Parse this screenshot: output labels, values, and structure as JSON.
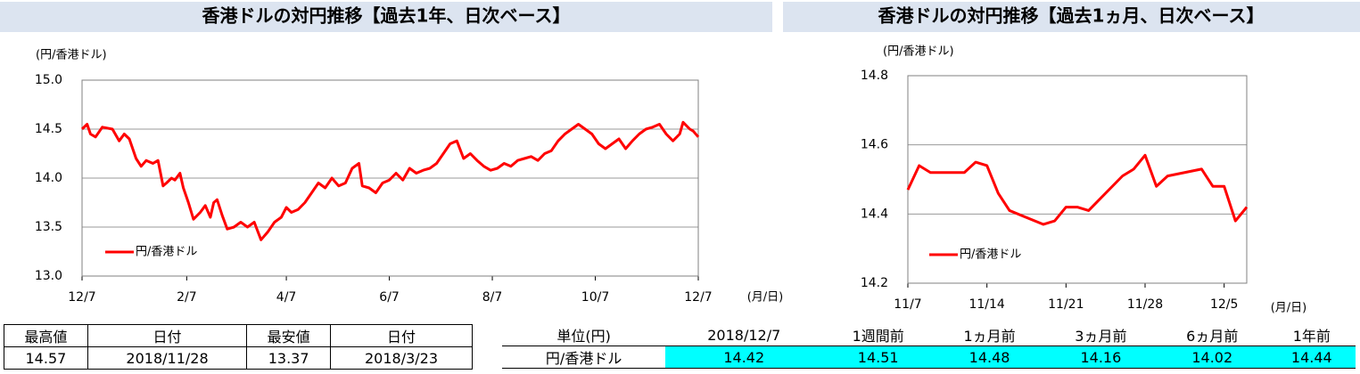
{
  "chart_data": [
    {
      "type": "line",
      "title": "香港ドルの対円推移【過去1年、日次ベース】",
      "y_axis_label": "(円/香港ドル)",
      "x_axis_label": "(月/日)",
      "x": [
        0,
        3,
        5,
        8,
        12,
        18,
        22,
        25,
        28,
        32,
        35,
        38,
        42,
        45,
        48,
        50,
        53,
        55,
        58,
        60,
        63,
        66,
        70,
        73,
        76,
        78,
        80,
        83,
        86,
        90,
        94,
        98,
        102,
        106,
        110,
        114,
        118,
        121,
        124,
        128,
        132,
        136,
        140,
        144,
        148,
        152,
        156,
        160,
        164,
        166,
        170,
        174,
        178,
        182,
        186,
        190,
        194,
        198,
        202,
        206,
        210,
        214,
        218,
        222,
        226,
        230,
        234,
        238,
        242,
        246,
        250,
        254,
        258,
        262,
        266,
        270,
        274,
        278,
        282,
        286,
        290,
        294,
        298,
        302,
        306,
        310,
        314,
        318,
        322,
        326,
        330,
        334,
        338,
        342,
        346,
        350,
        354,
        356,
        360,
        362,
        365
      ],
      "series": [
        {
          "name": "円/香港ドル",
          "color": "#ff0000",
          "values": [
            14.5,
            14.55,
            14.45,
            14.42,
            14.52,
            14.5,
            14.38,
            14.45,
            14.4,
            14.2,
            14.12,
            14.18,
            14.15,
            14.18,
            13.92,
            13.95,
            14.0,
            13.98,
            14.05,
            13.9,
            13.75,
            13.58,
            13.65,
            13.72,
            13.6,
            13.75,
            13.78,
            13.62,
            13.48,
            13.5,
            13.55,
            13.5,
            13.55,
            13.37,
            13.45,
            13.55,
            13.6,
            13.7,
            13.65,
            13.68,
            13.75,
            13.85,
            13.95,
            13.9,
            14.0,
            13.92,
            13.95,
            14.1,
            14.15,
            13.92,
            13.9,
            13.85,
            13.95,
            13.98,
            14.05,
            13.98,
            14.1,
            14.05,
            14.08,
            14.1,
            14.15,
            14.25,
            14.35,
            14.38,
            14.2,
            14.25,
            14.18,
            14.12,
            14.08,
            14.1,
            14.15,
            14.12,
            14.18,
            14.2,
            14.22,
            14.18,
            14.25,
            14.28,
            14.38,
            14.45,
            14.5,
            14.55,
            14.5,
            14.45,
            14.35,
            14.3,
            14.35,
            14.4,
            14.3,
            14.38,
            14.45,
            14.5,
            14.52,
            14.55,
            14.45,
            14.38,
            14.45,
            14.57,
            14.5,
            14.48,
            14.42
          ]
        }
      ],
      "xlim": [
        0,
        365
      ],
      "xticks": [
        {
          "value": 0,
          "label": "12/7"
        },
        {
          "value": 62,
          "label": "2/7"
        },
        {
          "value": 121,
          "label": "4/7"
        },
        {
          "value": 182,
          "label": "6/7"
        },
        {
          "value": 243,
          "label": "8/7"
        },
        {
          "value": 304,
          "label": "10/7"
        },
        {
          "value": 365,
          "label": "12/7"
        }
      ],
      "ylim": [
        13,
        15
      ],
      "yticks": [
        {
          "value": 13,
          "label": "13.0"
        },
        13.5,
        {
          "value": 14,
          "label": "14.0"
        },
        14.5,
        {
          "value": 15,
          "label": "15.0"
        }
      ],
      "grid": true,
      "legend": "lower-left"
    },
    {
      "type": "line",
      "title": "香港ドルの対円推移【過去1ヵ月、日次ベース】",
      "y_axis_label": "(円/香港ドル)",
      "x_axis_label": "(月/日)",
      "x": [
        0,
        1,
        2,
        5,
        6,
        7,
        8,
        9,
        12,
        13,
        14,
        15,
        16,
        19,
        20,
        21,
        22,
        23,
        26,
        27,
        28,
        29,
        30
      ],
      "series": [
        {
          "name": "円/香港ドル",
          "color": "#ff0000",
          "values": [
            14.47,
            14.54,
            14.52,
            14.52,
            14.55,
            14.54,
            14.46,
            14.41,
            14.37,
            14.38,
            14.42,
            14.42,
            14.41,
            14.51,
            14.53,
            14.57,
            14.48,
            14.51,
            14.53,
            14.48,
            14.48,
            14.38,
            14.42
          ]
        }
      ],
      "xlim": [
        0,
        30
      ],
      "xticks": [
        {
          "value": 0,
          "label": "11/7"
        },
        {
          "value": 7,
          "label": "11/14"
        },
        {
          "value": 14,
          "label": "11/21"
        },
        {
          "value": 21,
          "label": "11/28"
        },
        {
          "value": 28,
          "label": "12/5"
        }
      ],
      "ylim": [
        14.2,
        14.8
      ],
      "yticks": [
        14.2,
        14.4,
        14.6,
        14.8
      ],
      "grid": true,
      "legend": "lower-left"
    }
  ],
  "tables": [
    {
      "header": [
        "最高値",
        "日付",
        "最安値",
        "日付"
      ],
      "rows": [
        [
          14.57,
          "2018/11/28",
          13.37,
          "2018/3/23"
        ]
      ]
    },
    {
      "header": [
        "単位(円)",
        "2018/12/7",
        "1週間前",
        "1ヵ月前",
        "3ヵ月前",
        "6ヵ月前",
        "1年前"
      ],
      "rows": [
        [
          "円/香港ドル",
          14.42,
          14.51,
          14.48,
          14.16,
          14.02,
          14.44
        ]
      ]
    }
  ]
}
